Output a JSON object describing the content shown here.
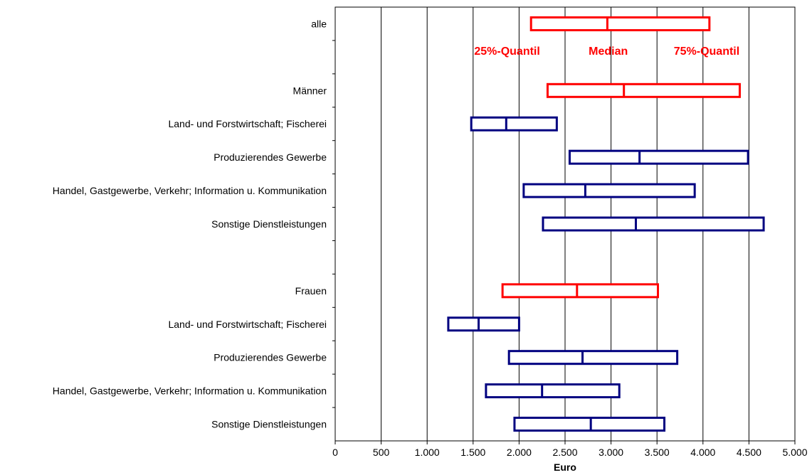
{
  "chart_data": {
    "type": "box",
    "xlabel": "Euro",
    "xlim": [
      0,
      5000
    ],
    "xticks": [
      0,
      500,
      1000,
      1500,
      2000,
      2500,
      3000,
      3500,
      4000,
      4500,
      5000
    ],
    "xtick_labels": [
      "0",
      "500",
      "1.000",
      "1.500",
      "2.000",
      "2.500",
      "3.000",
      "3.500",
      "4.000",
      "4.500",
      "5.000"
    ],
    "grid": "vertical",
    "categories": [
      "alle",
      "",
      "Männer",
      "Land- und Forstwirtschaft; Fischerei",
      "Produzierendes Gewerbe",
      "Handel, Gastgewerbe, Verkehr; Information u. Kommunikation",
      "Sonstige Dienstleistungen",
      "",
      "Frauen",
      "Land- und Forstwirtschaft; Fischerei",
      "Produzierendes Gewerbe",
      "Handel, Gastgewerbe, Verkehr; Information u. Kommunikation",
      "Sonstige Dienstleistungen"
    ],
    "boxes": [
      {
        "row": 0,
        "q25": 2130,
        "median": 2960,
        "q75": 4070,
        "color": "#ff0000"
      },
      {
        "row": 2,
        "q25": 2310,
        "median": 3140,
        "q75": 4400,
        "color": "#ff0000"
      },
      {
        "row": 3,
        "q25": 1480,
        "median": 1860,
        "q75": 2410,
        "color": "#000080"
      },
      {
        "row": 4,
        "q25": 2550,
        "median": 3310,
        "q75": 4490,
        "color": "#000080"
      },
      {
        "row": 5,
        "q25": 2050,
        "median": 2720,
        "q75": 3910,
        "color": "#000080"
      },
      {
        "row": 6,
        "q25": 2260,
        "median": 3270,
        "q75": 4660,
        "color": "#000080"
      },
      {
        "row": 8,
        "q25": 1820,
        "median": 2630,
        "q75": 3510,
        "color": "#ff0000"
      },
      {
        "row": 9,
        "q25": 1230,
        "median": 1560,
        "q75": 2000,
        "color": "#000080"
      },
      {
        "row": 10,
        "q25": 1890,
        "median": 2690,
        "q75": 3720,
        "color": "#000080"
      },
      {
        "row": 11,
        "q25": 1640,
        "median": 2250,
        "q75": 3090,
        "color": "#000080"
      },
      {
        "row": 12,
        "q25": 1950,
        "median": 2780,
        "q75": 3580,
        "color": "#000080"
      }
    ],
    "annotations": [
      {
        "text": "25%-Quantil",
        "x": 1870,
        "row": 0.8,
        "color": "#ff0000"
      },
      {
        "text": "Median",
        "x": 2970,
        "row": 0.8,
        "color": "#ff0000"
      },
      {
        "text": "75%-Quantil",
        "x": 4040,
        "row": 0.8,
        "color": "#ff0000"
      }
    ]
  }
}
